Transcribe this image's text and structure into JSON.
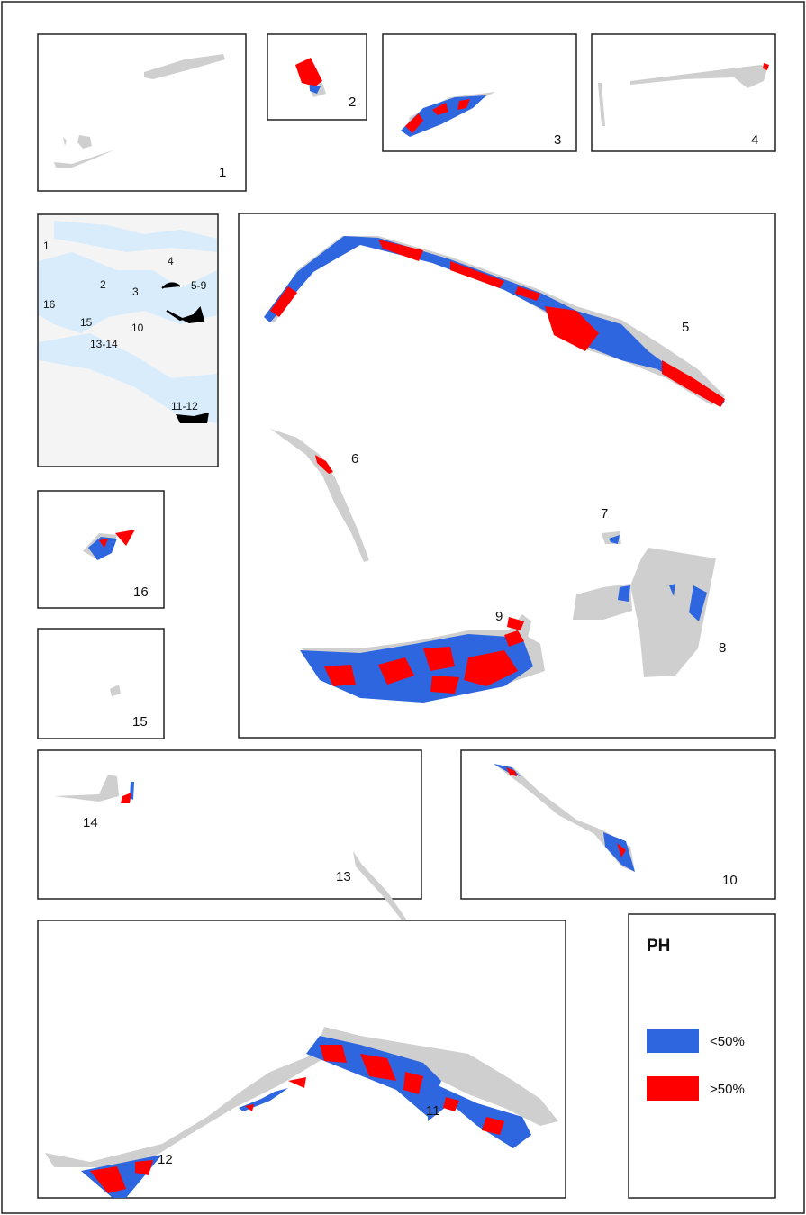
{
  "panels": [
    {
      "label": "1"
    },
    {
      "label": "2"
    },
    {
      "label": "3"
    },
    {
      "label": "4"
    },
    {
      "label": "5"
    },
    {
      "label": "6"
    },
    {
      "label": "7"
    },
    {
      "label": "8"
    },
    {
      "label": "9"
    },
    {
      "label": "10"
    },
    {
      "label": "11"
    },
    {
      "label": "12"
    },
    {
      "label": "13"
    },
    {
      "label": "14"
    },
    {
      "label": "15"
    },
    {
      "label": "16"
    }
  ],
  "overview": {
    "labels": [
      "1",
      "2",
      "3",
      "4",
      "5-9",
      "16",
      "15",
      "10",
      "13-14",
      "11-12"
    ]
  },
  "legend": {
    "title": "PH",
    "items": [
      {
        "label": "<50%",
        "color": "#2e66e0"
      },
      {
        "label": ">50%",
        "color": "#ff0000"
      }
    ]
  }
}
